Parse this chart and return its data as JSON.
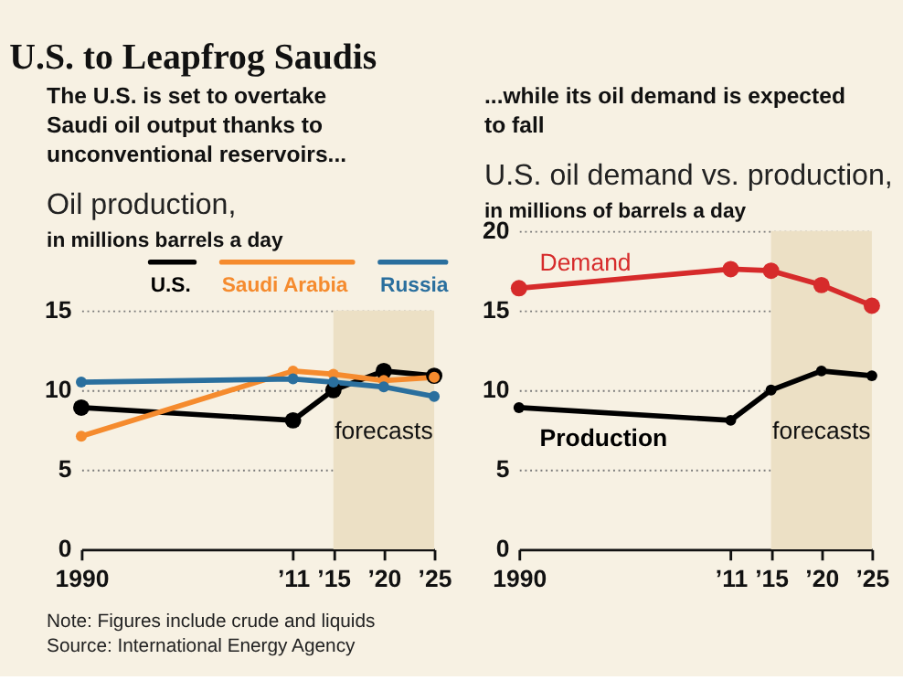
{
  "chart_data": [
    {
      "type": "line",
      "title": "U.S. to Leapfrog Saudis",
      "subtitle": "The U.S. is set to overtake Saudi oil output thanks to unconventional reservoirs...",
      "ylabel": "Oil production, in millions barrels a day",
      "x": [
        1990,
        2011,
        2015,
        2020,
        2025
      ],
      "series": [
        {
          "name": "U.S.",
          "color": "#000000",
          "values": [
            8.9,
            8.1,
            10.0,
            11.2,
            10.9
          ]
        },
        {
          "name": "Saudi Arabia",
          "color": "#f58b2e",
          "values": [
            7.1,
            11.2,
            11.0,
            10.6,
            10.8
          ]
        },
        {
          "name": "Russia",
          "color": "#2a6f9e",
          "values": [
            10.5,
            10.7,
            10.5,
            10.2,
            9.6
          ]
        }
      ],
      "xlim": [
        1990,
        2025
      ],
      "xticks": [
        1990,
        {
          "value": 2011,
          "label": "’11"
        },
        {
          "value": 2015,
          "label": "’15"
        },
        {
          "value": 2020,
          "label": "’20"
        },
        {
          "value": 2025,
          "label": "’25"
        }
      ],
      "ylim": [
        0,
        15
      ],
      "yticks": [
        0,
        5,
        10,
        15
      ],
      "bands": [
        {
          "axis": "x",
          "from": 2015,
          "to": 2025,
          "label": "forecasts",
          "color": "#ece0c5"
        }
      ],
      "grid": "y",
      "legend": "top",
      "marker": "circle",
      "annotations": [
        "Note: Figures include crude and liquids",
        "Source: International Energy Agency"
      ]
    },
    {
      "type": "line",
      "subtitle": "...while its oil demand is expected to fall",
      "ylabel": "U.S. oil demand vs. production, in millions of barrels a day",
      "x": [
        1990,
        2011,
        2015,
        2020,
        2025
      ],
      "series": [
        {
          "name": "Demand",
          "color": "#d62b2b",
          "values": [
            16.4,
            17.6,
            17.5,
            16.6,
            15.3
          ]
        },
        {
          "name": "Production",
          "color": "#000000",
          "values": [
            8.9,
            8.1,
            10.0,
            11.2,
            10.9
          ]
        }
      ],
      "xlim": [
        1990,
        2025
      ],
      "xticks": [
        1990,
        {
          "value": 2011,
          "label": "’11"
        },
        {
          "value": 2015,
          "label": "’15"
        },
        {
          "value": 2020,
          "label": "’20"
        },
        {
          "value": 2025,
          "label": "’25"
        }
      ],
      "ylim": [
        0,
        20
      ],
      "yticks": [
        0,
        5,
        10,
        15,
        20
      ],
      "bands": [
        {
          "axis": "x",
          "from": 2015,
          "to": 2025,
          "label": "forecasts",
          "color": "#ece0c5"
        }
      ],
      "grid": "y",
      "legend": false,
      "marker": "circle"
    }
  ]
}
